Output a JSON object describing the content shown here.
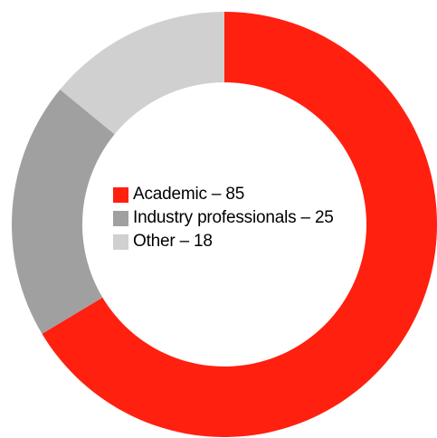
{
  "chart_data": {
    "type": "pie",
    "variant": "donut",
    "legend_position": "center",
    "series": [
      {
        "label": "Academic – 85",
        "category": "Academic",
        "value": 85,
        "color": "#ff2010"
      },
      {
        "label": "Industry professionals – 25",
        "category": "Industry professionals",
        "value": 25,
        "color": "#a0a0a0"
      },
      {
        "label": "Other – 18",
        "category": "Other",
        "value": 18,
        "color": "#d0d0d0"
      }
    ]
  }
}
